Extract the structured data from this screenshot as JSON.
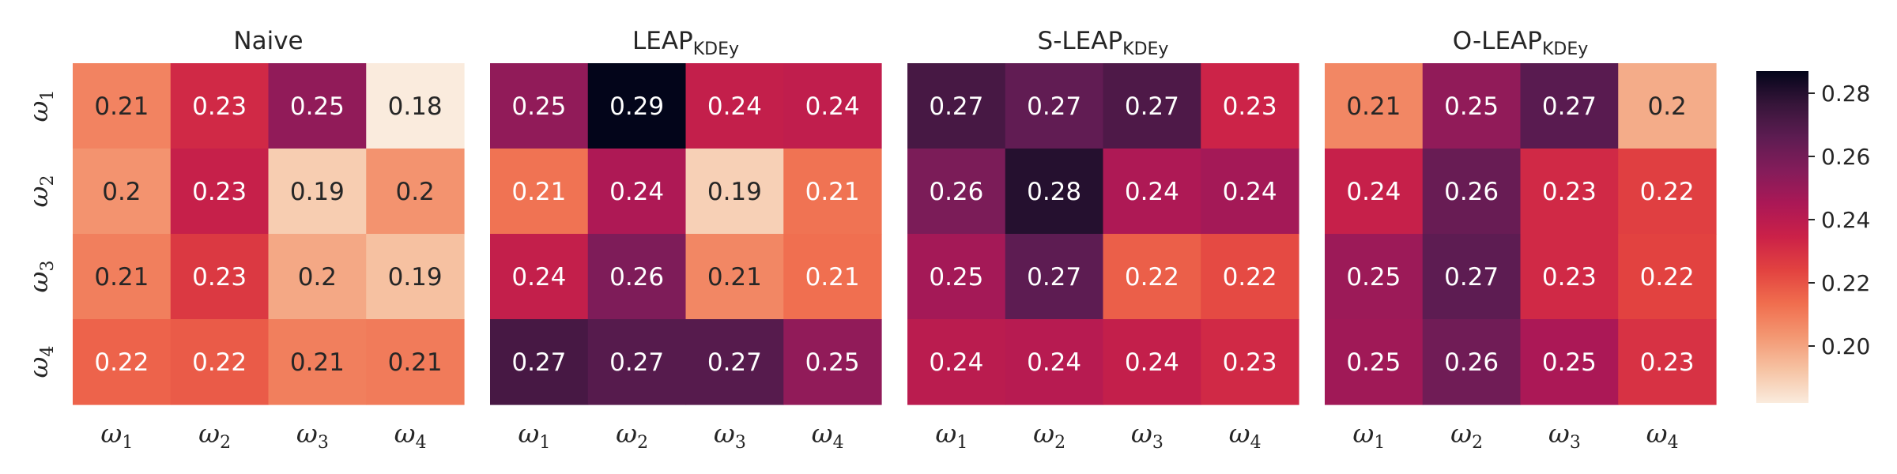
{
  "chart_data": {
    "type": "heatmap",
    "colormap": "rocket_r",
    "vmin": 0.182,
    "vmax": 0.287,
    "tick_symbol": "ω",
    "row_labels": [
      "1",
      "2",
      "3",
      "4"
    ],
    "col_labels": [
      "1",
      "2",
      "3",
      "4"
    ],
    "colorbar_ticks": [
      "0.20",
      "0.22",
      "0.24",
      "0.26",
      "0.28"
    ],
    "colorbar_tick_values": [
      0.2,
      0.22,
      0.24,
      0.26,
      0.28
    ],
    "panels": [
      {
        "title": "Naive",
        "title_sub": "",
        "values": [
          [
            0.21,
            0.23,
            0.25,
            0.18
          ],
          [
            0.2,
            0.23,
            0.19,
            0.2
          ],
          [
            0.21,
            0.23,
            0.2,
            0.19
          ],
          [
            0.22,
            0.22,
            0.21,
            0.21
          ]
        ],
        "fill_values": [
          [
            0.208,
            0.232,
            0.252,
            0.182
          ],
          [
            0.204,
            0.236,
            0.19,
            0.204
          ],
          [
            0.209,
            0.227,
            0.199,
            0.193
          ],
          [
            0.216,
            0.218,
            0.209,
            0.21
          ]
        ]
      },
      {
        "title": "LEAP",
        "title_sub": "KDEy",
        "values": [
          [
            0.25,
            0.29,
            0.24,
            0.24
          ],
          [
            0.21,
            0.24,
            0.19,
            0.21
          ],
          [
            0.24,
            0.26,
            0.21,
            0.21
          ],
          [
            0.27,
            0.27,
            0.27,
            0.25
          ]
        ],
        "fill_values": [
          [
            0.252,
            0.287,
            0.237,
            0.238
          ],
          [
            0.212,
            0.244,
            0.189,
            0.212
          ],
          [
            0.237,
            0.257,
            0.207,
            0.213
          ],
          [
            0.272,
            0.268,
            0.268,
            0.252
          ]
        ]
      },
      {
        "title": "S-LEAP",
        "title_sub": "KDEy",
        "values": [
          [
            0.27,
            0.27,
            0.27,
            0.23
          ],
          [
            0.26,
            0.28,
            0.24,
            0.24
          ],
          [
            0.25,
            0.27,
            0.22,
            0.22
          ],
          [
            0.24,
            0.24,
            0.24,
            0.23
          ]
        ],
        "fill_values": [
          [
            0.272,
            0.265,
            0.27,
            0.234
          ],
          [
            0.258,
            0.28,
            0.244,
            0.247
          ],
          [
            0.247,
            0.266,
            0.217,
            0.222
          ],
          [
            0.24,
            0.241,
            0.237,
            0.232
          ]
        ]
      },
      {
        "title": "O-LEAP",
        "title_sub": "KDEy",
        "values": [
          [
            0.21,
            0.25,
            0.27,
            0.2
          ],
          [
            0.24,
            0.26,
            0.23,
            0.22
          ],
          [
            0.25,
            0.27,
            0.23,
            0.22
          ],
          [
            0.25,
            0.26,
            0.25,
            0.23
          ]
        ],
        "fill_values": [
          [
            0.207,
            0.252,
            0.267,
            0.198
          ],
          [
            0.236,
            0.263,
            0.232,
            0.225
          ],
          [
            0.249,
            0.266,
            0.232,
            0.224
          ],
          [
            0.248,
            0.261,
            0.245,
            0.229
          ]
        ]
      }
    ]
  }
}
